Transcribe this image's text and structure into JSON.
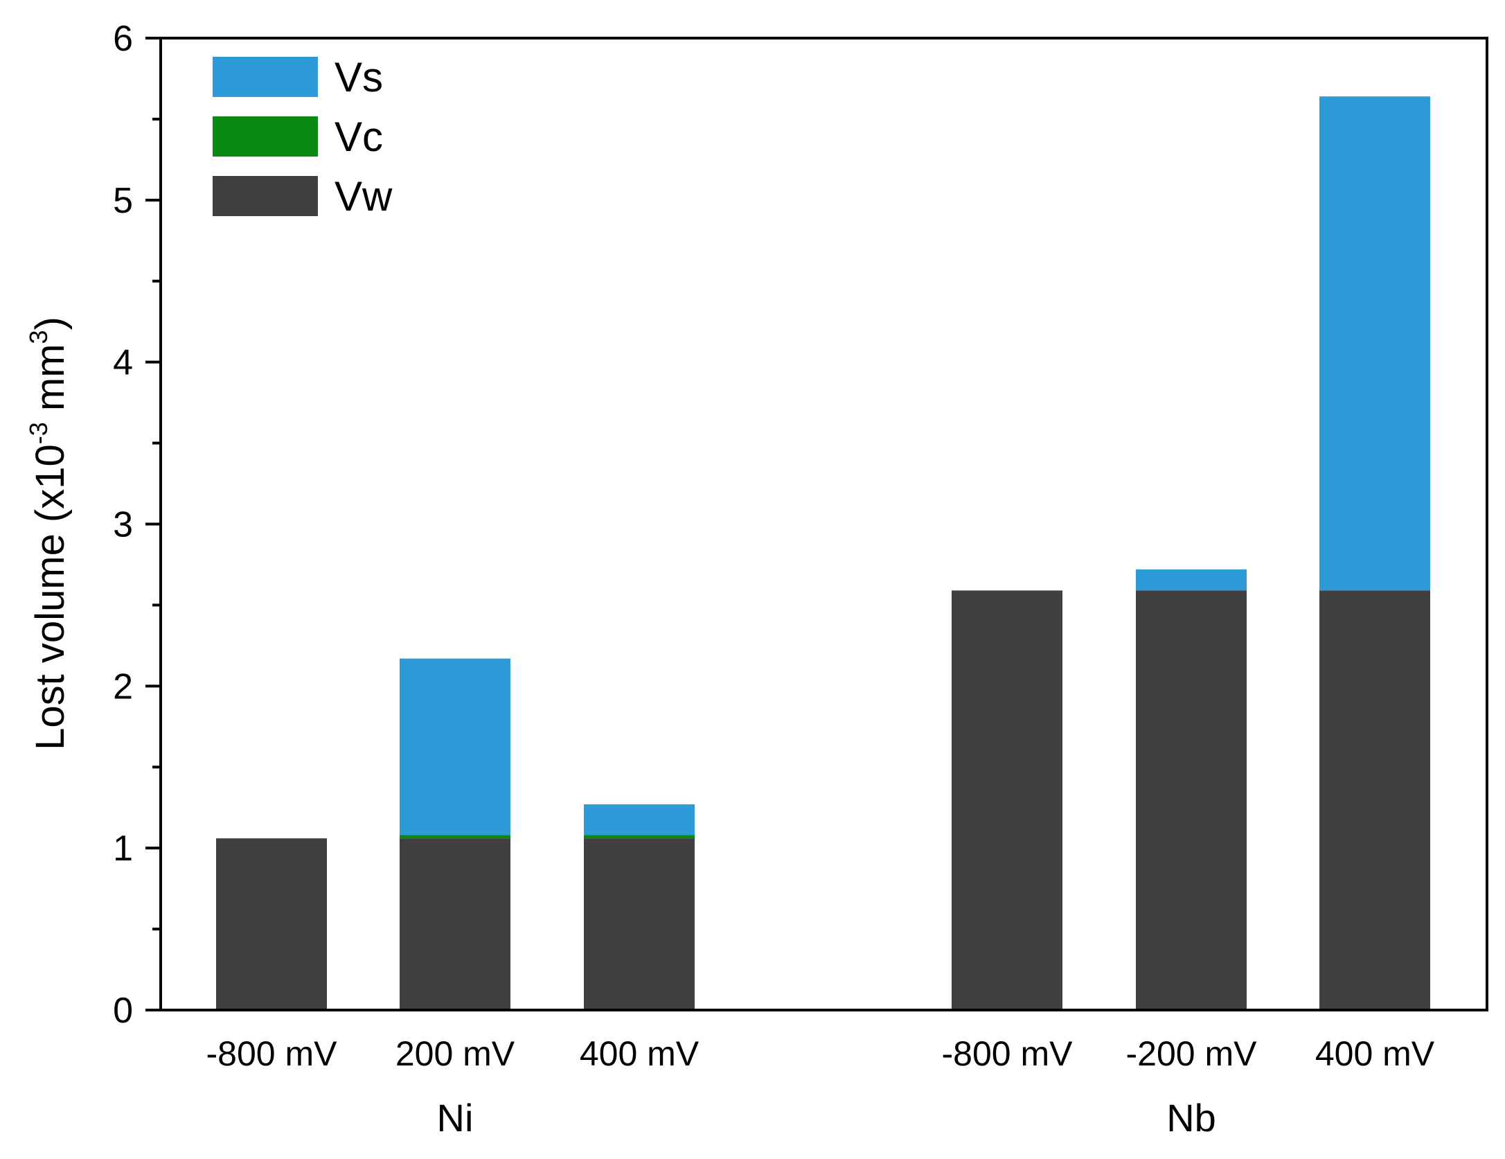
{
  "chart_data": {
    "type": "bar",
    "stacked": true,
    "title": "",
    "xlabel": "",
    "ylabel": {
      "main": "Lost volume (x10",
      "exp1": "-3",
      "unit": " mm",
      "exp2": "3",
      "close": ")"
    },
    "ylim": [
      0,
      6
    ],
    "yticks": [
      "0",
      "1",
      "2",
      "3",
      "4",
      "5",
      "6"
    ],
    "groups": [
      {
        "name": "Ni",
        "categories": [
          "-800 mV",
          "200 mV",
          "400 mV"
        ]
      },
      {
        "name": "Nb",
        "categories": [
          "-800 mV",
          "-200 mV",
          "400 mV"
        ]
      }
    ],
    "series": [
      {
        "name": "Vw",
        "color": "#404040",
        "values": [
          1.06,
          1.06,
          1.06,
          2.59,
          2.59,
          2.59
        ]
      },
      {
        "name": "Vc",
        "color": "#0a8a10",
        "values": [
          0.0,
          0.02,
          0.02,
          0.0,
          0.0,
          0.0
        ]
      },
      {
        "name": "Vs",
        "color": "#2e9ad8",
        "values": [
          0.0,
          1.09,
          0.19,
          0.0,
          0.13,
          3.05
        ]
      }
    ],
    "legend": {
      "position": "top-left",
      "order": [
        "Vs",
        "Vc",
        "Vw"
      ]
    }
  }
}
